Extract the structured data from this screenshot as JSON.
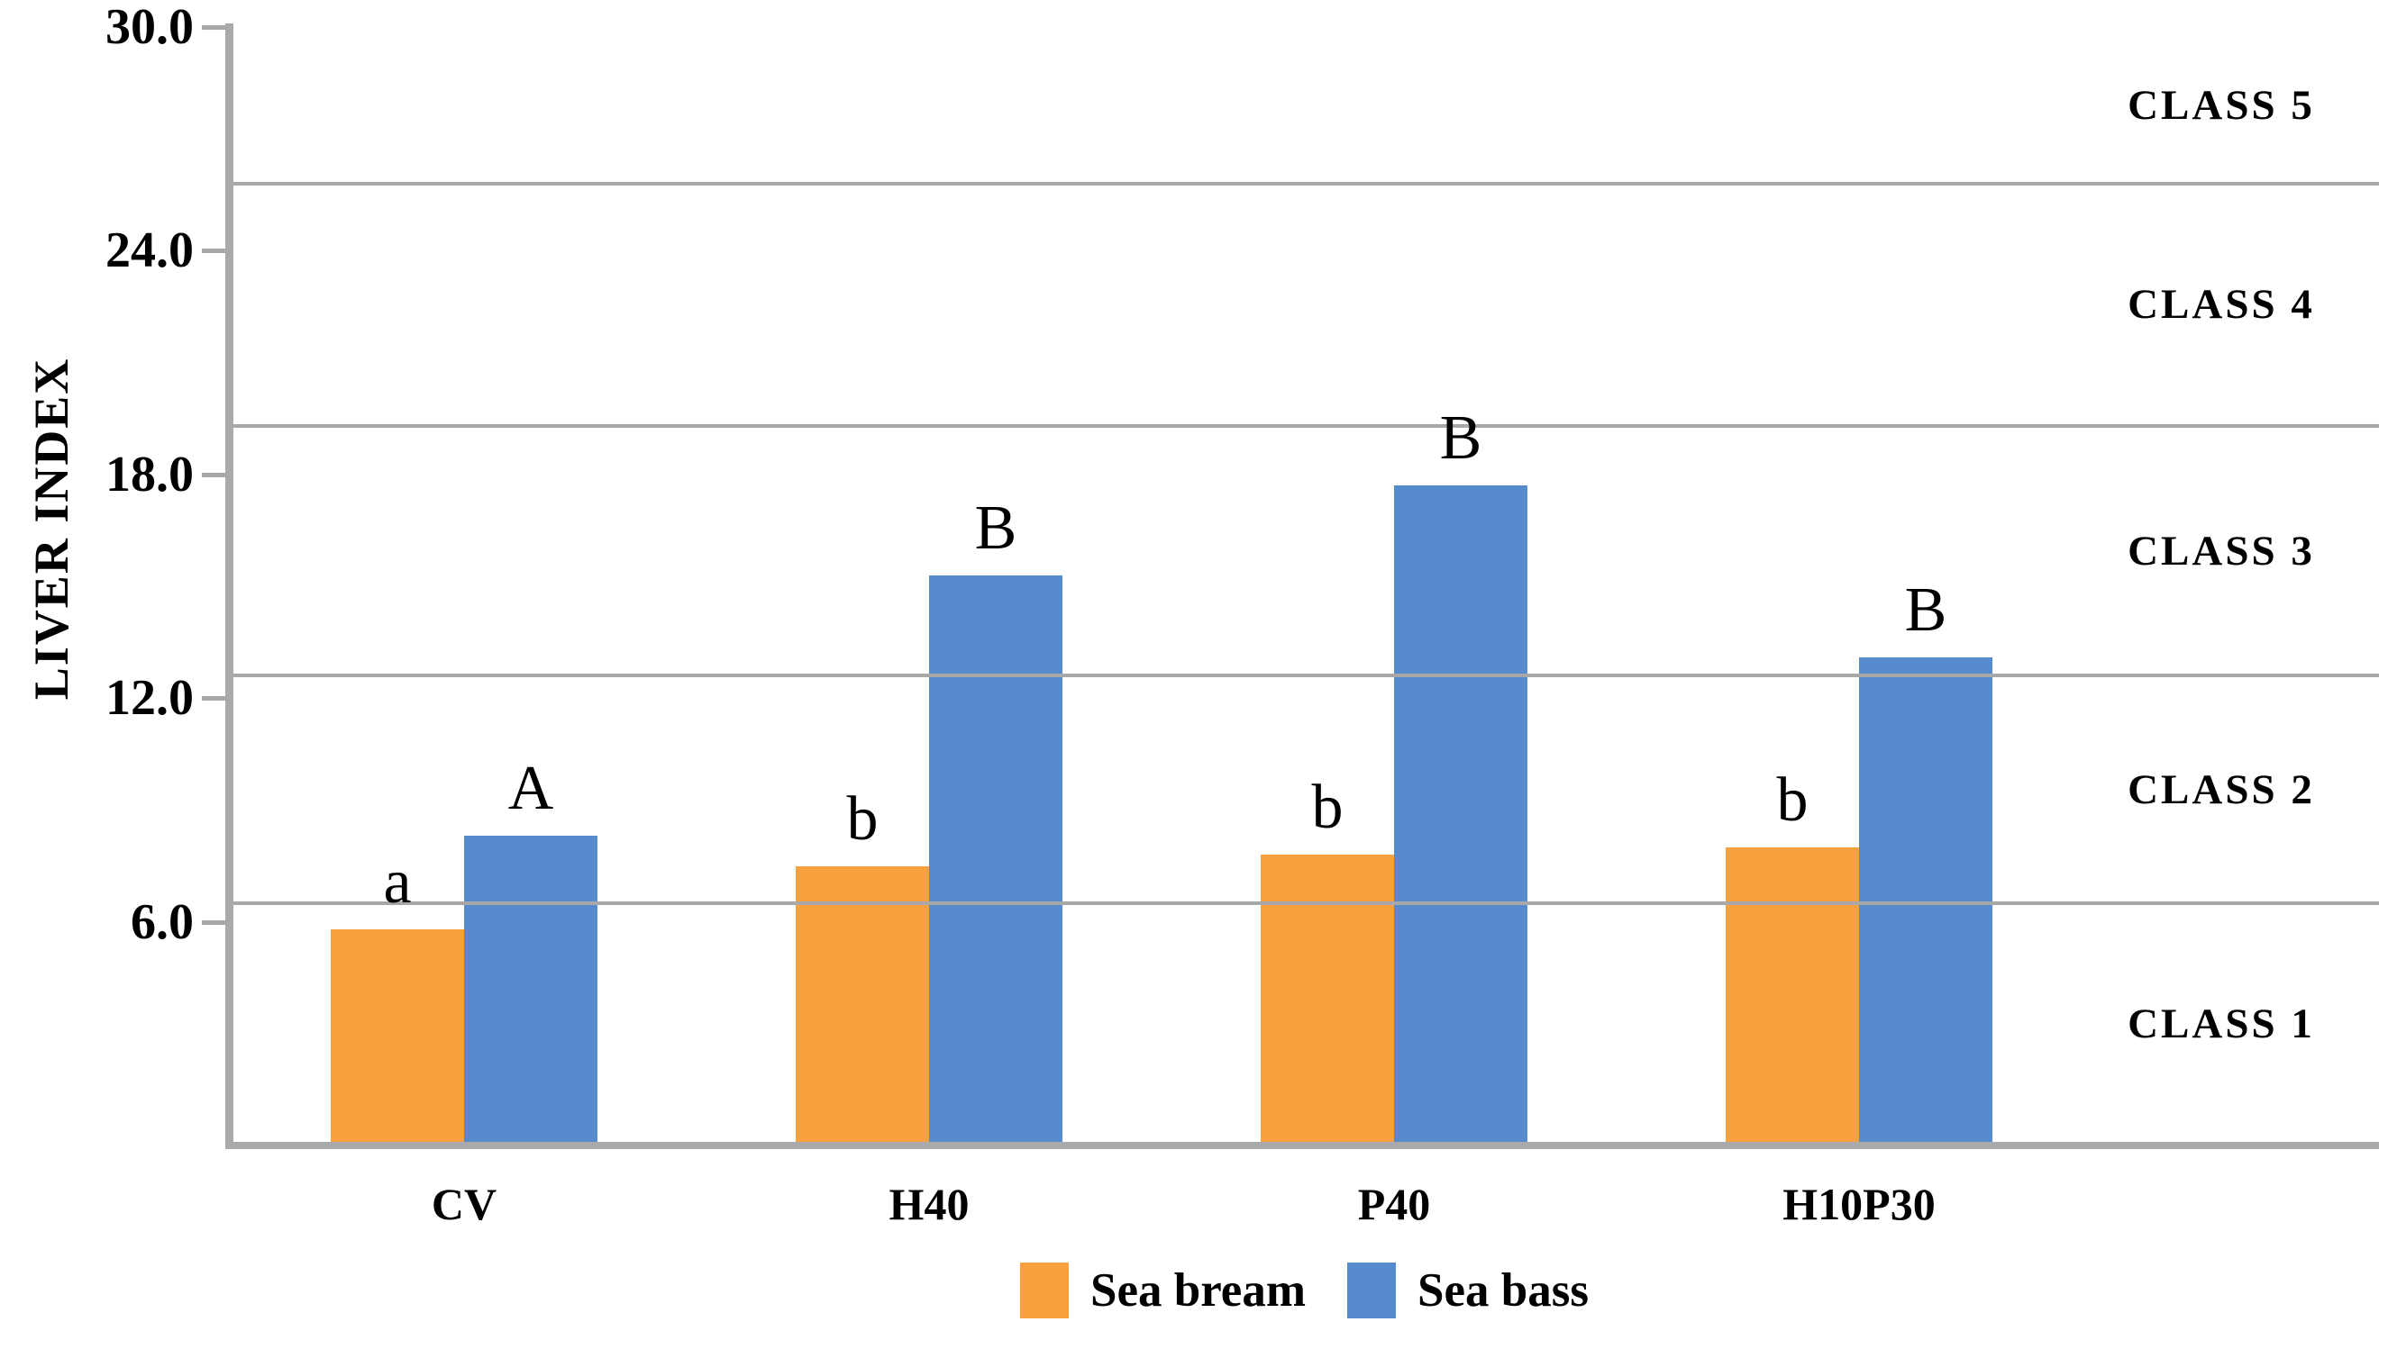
{
  "chart_data": {
    "type": "bar",
    "title": "",
    "xlabel": "",
    "ylabel": "LIVER INDEX",
    "categories": [
      "CV",
      "H40",
      "P40",
      "H10P30"
    ],
    "series": [
      {
        "name": "Sea bream",
        "color": "#F9A03E",
        "values": [
          5.8,
          7.5,
          7.8,
          8.0
        ],
        "bar_labels": [
          "a",
          "b",
          "b",
          "b"
        ]
      },
      {
        "name": "Sea bass",
        "color": "#568CCE",
        "values": [
          8.3,
          15.3,
          17.7,
          13.1
        ],
        "bar_labels": [
          "A",
          "B",
          "B",
          "B"
        ]
      }
    ],
    "y_axis": {
      "min": 0,
      "max": 30,
      "ticks": [
        {
          "value": 6,
          "label": "6.0"
        },
        {
          "value": 12,
          "label": "12.0"
        },
        {
          "value": 18,
          "label": "18.0"
        },
        {
          "value": 24,
          "label": "24.0"
        },
        {
          "value": 30,
          "label": "30.0"
        }
      ]
    },
    "gridlines": [
      6.5,
      12.6,
      19.3,
      25.8
    ],
    "class_bands": [
      {
        "label": "CLASS 1",
        "from": 0,
        "to": 6.5
      },
      {
        "label": "CLASS 2",
        "from": 6.5,
        "to": 12.6
      },
      {
        "label": "CLASS 3",
        "from": 12.6,
        "to": 19.3
      },
      {
        "label": "CLASS 4",
        "from": 19.3,
        "to": 25.8
      },
      {
        "label": "CLASS 5",
        "from": 25.8,
        "to": 30
      }
    ],
    "legend": {
      "position": "bottom",
      "items": [
        {
          "label": "Sea bream",
          "color": "#F9A03E"
        },
        {
          "label": "Sea bass",
          "color": "#568CCE"
        }
      ]
    },
    "grid": true,
    "line_color": "#A8A8A8",
    "text_color": "#000000",
    "background": "#FFFFFF"
  }
}
